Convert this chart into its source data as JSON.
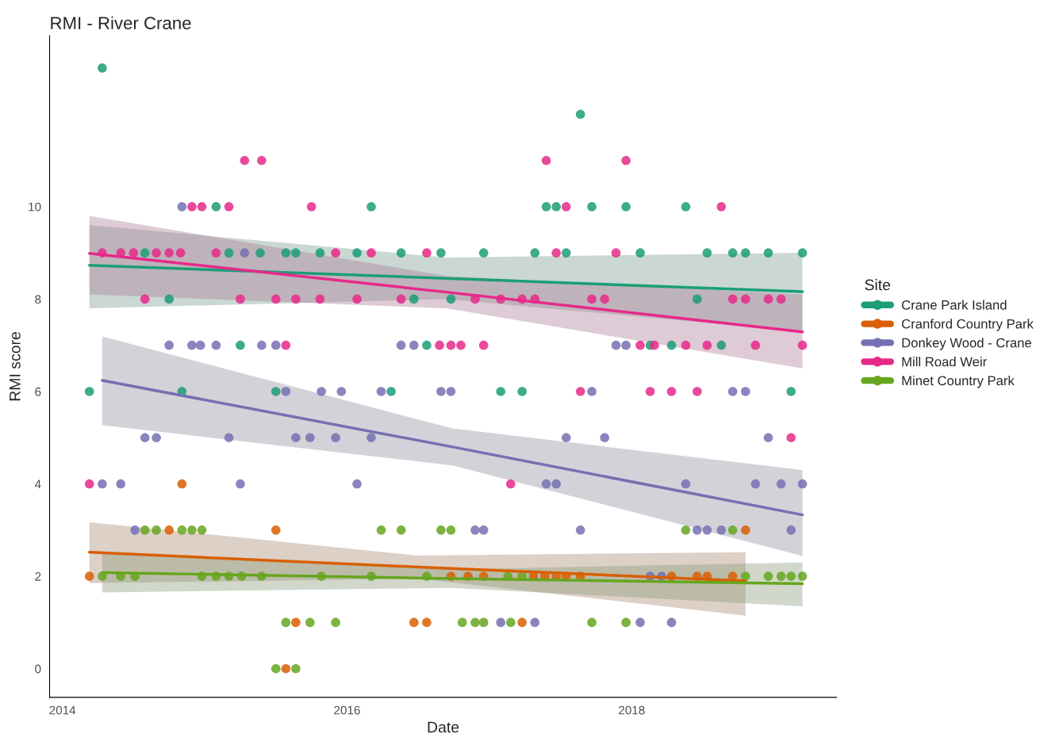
{
  "chart_data": {
    "type": "scatter",
    "title": "RMI - River Crane",
    "xlabel": "Date",
    "ylabel": "RMI score",
    "legend_title": "Site",
    "legend": "right",
    "grid": false,
    "marker": "circle",
    "xlim": [
      2013.91,
      2019.44
    ],
    "xticks": [
      2014,
      2016,
      2018
    ],
    "ylim": [
      -0.62,
      13.7
    ],
    "yticks": [
      0,
      2,
      4,
      6,
      8,
      10
    ],
    "series": [
      {
        "name": "Crane Park Island",
        "color": "#1b9e77",
        "x": [
          2014.28,
          2017.64,
          2015.08,
          2016.17,
          2017.4,
          2017.47,
          2017.72,
          2017.96,
          2018.38,
          2014.58,
          2015.17,
          2015.39,
          2015.57,
          2015.64,
          2015.81,
          2016.07,
          2016.38,
          2016.66,
          2016.96,
          2017.32,
          2017.54,
          2018.06,
          2018.53,
          2018.71,
          2018.8,
          2018.96,
          2019.2,
          2014.75,
          2016.47,
          2016.73,
          2018.46,
          2015.25,
          2016.56,
          2018.13,
          2018.28,
          2018.63,
          2014.19,
          2014.84,
          2015.5,
          2016.31,
          2017.08,
          2017.23,
          2019.12
        ],
        "values": [
          13,
          12,
          10,
          10,
          10,
          10,
          10,
          10,
          10,
          9,
          9,
          9,
          9,
          9,
          9,
          9,
          9,
          9,
          9,
          9,
          9,
          9,
          9,
          9,
          9,
          9,
          9,
          8,
          8,
          8,
          8,
          7,
          7,
          7,
          7,
          7,
          6,
          6,
          6,
          6,
          6,
          6,
          6
        ]
      },
      {
        "name": "Cranford Country Park",
        "color": "#d95f02",
        "x": [
          2014.84,
          2014.75,
          2015.5,
          2018.8,
          2014.19,
          2016.73,
          2016.85,
          2016.96,
          2017.31,
          2017.39,
          2017.47,
          2017.54,
          2017.64,
          2018.28,
          2018.46,
          2018.53,
          2018.71,
          2015.64,
          2016.47,
          2016.56,
          2017.23,
          2015.57
        ],
        "values": [
          4,
          3,
          3,
          3,
          2,
          2,
          2,
          2,
          2,
          2,
          2,
          2,
          2,
          2,
          2,
          2,
          2,
          1,
          1,
          1,
          1,
          0
        ]
      },
      {
        "name": "Donkey Wood - Crane",
        "color": "#7570b3",
        "x": [
          2014.84,
          2015.28,
          2014.75,
          2014.91,
          2014.97,
          2015.08,
          2015.4,
          2015.5,
          2016.38,
          2016.47,
          2017.89,
          2017.96,
          2015.57,
          2015.82,
          2015.96,
          2016.24,
          2016.66,
          2016.73,
          2017.72,
          2018.71,
          2018.8,
          2014.58,
          2014.66,
          2015.17,
          2015.64,
          2015.74,
          2015.92,
          2016.17,
          2017.54,
          2017.81,
          2018.96,
          2014.28,
          2014.41,
          2015.25,
          2016.07,
          2017.4,
          2017.47,
          2018.38,
          2018.87,
          2019.05,
          2019.2,
          2014.51,
          2016.9,
          2016.96,
          2017.64,
          2018.46,
          2018.53,
          2018.63,
          2019.12,
          2018.13,
          2018.21,
          2017.08,
          2017.32,
          2018.06,
          2018.28
        ],
        "values": [
          10,
          9,
          7,
          7,
          7,
          7,
          7,
          7,
          7,
          7,
          7,
          7,
          6,
          6,
          6,
          6,
          6,
          6,
          6,
          6,
          6,
          5,
          5,
          5,
          5,
          5,
          5,
          5,
          5,
          5,
          5,
          4,
          4,
          4,
          4,
          4,
          4,
          4,
          4,
          4,
          4,
          3,
          3,
          3,
          3,
          3,
          3,
          3,
          3,
          2,
          2,
          1,
          1,
          1,
          1
        ]
      },
      {
        "name": "Mill Road Weir",
        "color": "#e7298a",
        "x": [
          2015.28,
          2015.4,
          2017.4,
          2017.96,
          2014.91,
          2014.98,
          2015.17,
          2015.75,
          2017.54,
          2018.63,
          2014.28,
          2014.41,
          2014.5,
          2014.66,
          2014.75,
          2014.83,
          2015.08,
          2015.92,
          2016.17,
          2016.56,
          2017.47,
          2017.89,
          2014.58,
          2015.25,
          2015.5,
          2015.64,
          2015.81,
          2016.07,
          2016.38,
          2016.9,
          2017.08,
          2017.23,
          2017.32,
          2017.72,
          2017.81,
          2018.71,
          2018.8,
          2018.96,
          2019.05,
          2015.57,
          2016.65,
          2016.73,
          2016.8,
          2016.96,
          2018.06,
          2018.16,
          2018.38,
          2018.53,
          2018.87,
          2019.2,
          2017.64,
          2018.13,
          2018.28,
          2018.46,
          2019.12,
          2014.19,
          2017.15
        ],
        "values": [
          11,
          11,
          11,
          11,
          10,
          10,
          10,
          10,
          10,
          10,
          9,
          9,
          9,
          9,
          9,
          9,
          9,
          9,
          9,
          9,
          9,
          9,
          8,
          8,
          8,
          8,
          8,
          8,
          8,
          8,
          8,
          8,
          8,
          8,
          8,
          8,
          8,
          8,
          8,
          7,
          7,
          7,
          7,
          7,
          7,
          7,
          7,
          7,
          7,
          7,
          6,
          6,
          6,
          6,
          5,
          4,
          4
        ]
      },
      {
        "name": "Minet Country Park",
        "color": "#66a61e",
        "x": [
          2014.58,
          2014.66,
          2014.84,
          2014.91,
          2014.98,
          2016.24,
          2016.38,
          2016.66,
          2016.73,
          2018.38,
          2018.71,
          2014.28,
          2014.41,
          2014.51,
          2014.98,
          2015.08,
          2015.17,
          2015.26,
          2015.4,
          2015.82,
          2016.17,
          2016.56,
          2017.13,
          2017.23,
          2018.8,
          2018.96,
          2019.05,
          2019.12,
          2019.2,
          2015.57,
          2015.74,
          2015.92,
          2016.81,
          2016.9,
          2016.96,
          2017.15,
          2017.72,
          2017.96,
          2015.5,
          2015.64
        ],
        "values": [
          3,
          3,
          3,
          3,
          3,
          3,
          3,
          3,
          3,
          3,
          3,
          2,
          2,
          2,
          2,
          2,
          2,
          2,
          2,
          2,
          2,
          2,
          2,
          2,
          2,
          2,
          2,
          2,
          2,
          1,
          1,
          1,
          1,
          1,
          1,
          1,
          1,
          1,
          0,
          0
        ]
      },
      {
        "type": "line",
        "marker": "none",
        "color": "#1b9e77",
        "x": [
          2014.19,
          2016.7,
          2019.2
        ],
        "values": [
          8.73,
          8.45,
          8.16
        ],
        "lower": [
          7.8,
          8.0,
          7.3
        ],
        "upper": [
          9.6,
          8.9,
          9.0
        ]
      },
      {
        "type": "line",
        "marker": "none",
        "color": "#d95f02",
        "x": [
          2014.19,
          2016.5,
          2018.8
        ],
        "values": [
          2.52,
          2.2,
          1.9
        ],
        "lower": [
          1.85,
          1.95,
          1.15
        ],
        "upper": [
          3.17,
          2.45,
          2.52
        ]
      },
      {
        "type": "line",
        "marker": "none",
        "color": "#7570b3",
        "x": [
          2014.28,
          2016.74,
          2019.2
        ],
        "values": [
          6.24,
          4.8,
          3.33
        ],
        "lower": [
          5.27,
          4.4,
          2.44
        ],
        "upper": [
          7.19,
          5.2,
          4.3
        ]
      },
      {
        "type": "line",
        "marker": "none",
        "color": "#e7298a",
        "x": [
          2014.19,
          2016.7,
          2019.2
        ],
        "values": [
          8.99,
          8.15,
          7.29
        ],
        "lower": [
          8.1,
          7.8,
          6.5
        ],
        "upper": [
          9.8,
          8.5,
          8.1
        ]
      },
      {
        "type": "line",
        "marker": "none",
        "color": "#66a61e",
        "x": [
          2014.28,
          2016.74,
          2019.2
        ],
        "values": [
          2.08,
          1.95,
          1.84
        ],
        "lower": [
          1.65,
          1.75,
          1.35
        ],
        "upper": [
          2.5,
          2.15,
          2.3
        ]
      }
    ]
  }
}
